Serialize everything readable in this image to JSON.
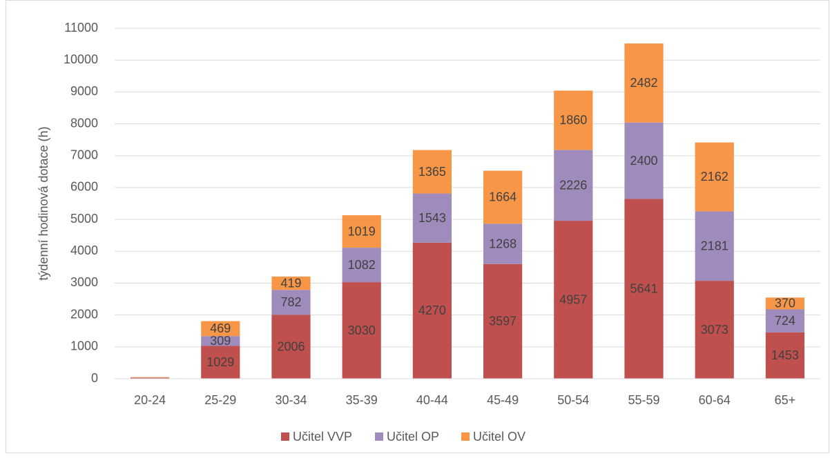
{
  "chart_data": {
    "type": "stacked_bar",
    "y_label": "týdenní hodinová dotace (h)",
    "categories": [
      "20-24",
      "25-29",
      "30-34",
      "35-39",
      "40-44",
      "45-49",
      "50-54",
      "55-59",
      "60-64",
      "65+"
    ],
    "series": [
      {
        "name": "Učitel VVP",
        "color": "#c0504d",
        "values": [
          30,
          1029,
          2006,
          3030,
          4270,
          3597,
          4957,
          5641,
          3073,
          1453
        ]
      },
      {
        "name": "Učitel OP",
        "color": "#a08cbc",
        "values": [
          5,
          309,
          782,
          1082,
          1543,
          1268,
          2226,
          2400,
          2181,
          724
        ]
      },
      {
        "name": "Učitel OV",
        "color": "#f79646",
        "values": [
          15,
          469,
          419,
          1019,
          1365,
          1664,
          1860,
          2482,
          2162,
          370
        ]
      }
    ],
    "ylim": [
      0,
      11000
    ],
    "yticks": [
      0,
      1000,
      2000,
      3000,
      4000,
      5000,
      6000,
      7000,
      8000,
      9000,
      10000,
      11000
    ],
    "grid": true,
    "legend": "bottom"
  }
}
